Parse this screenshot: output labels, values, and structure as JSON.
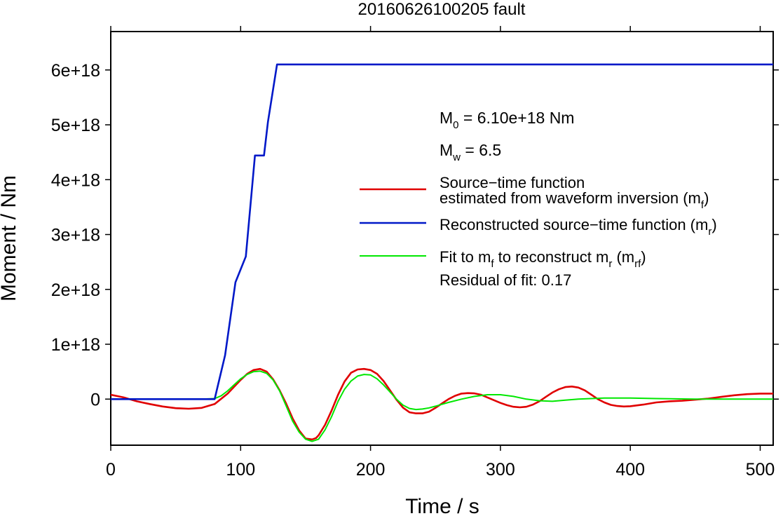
{
  "chart_data": {
    "type": "line",
    "title": "20160626100205 fault",
    "xlabel": "Time / s",
    "ylabel": "Moment / Nm",
    "xlim": [
      0,
      510
    ],
    "ylim": [
      -8.4e+17,
      6.7e+18
    ],
    "xticks": [
      0,
      100,
      200,
      300,
      400,
      500
    ],
    "xtick_labels": [
      "0",
      "100",
      "200",
      "300",
      "400",
      "500"
    ],
    "yticks": [
      0,
      1e+18,
      2e+18,
      3e+18,
      4e+18,
      5e+18,
      6e+18
    ],
    "ytick_labels": [
      "0",
      "1e+18",
      "2e+18",
      "3e+18",
      "4e+18",
      "5e+18",
      "6e+18"
    ],
    "grid": false,
    "legend_position": "right",
    "annotations": {
      "m0": {
        "main": "M",
        "sub": "0",
        "rest": " = 6.10e+18 Nm"
      },
      "mw": {
        "main": "M",
        "sub": "w",
        "rest": " = 6.5"
      },
      "residual": "Residual of fit: 0.17"
    },
    "series": [
      {
        "name": "Source−time function estimated from waveform inversion (mf)",
        "legend_lines": [
          {
            "text": "Source−time function"
          },
          {
            "text": "estimated from waveform inversion (m",
            "sub": "f",
            "tail": ")"
          }
        ],
        "color": "#e00000",
        "x": [
          0,
          10,
          20,
          30,
          40,
          50,
          60,
          70,
          80,
          90,
          100,
          105,
          110,
          115,
          120,
          125,
          130,
          135,
          140,
          145,
          150,
          155,
          158,
          160,
          165,
          170,
          175,
          180,
          185,
          190,
          195,
          200,
          205,
          210,
          215,
          220,
          225,
          230,
          235,
          240,
          245,
          250,
          255,
          260,
          265,
          270,
          275,
          280,
          285,
          290,
          295,
          300,
          305,
          310,
          315,
          320,
          325,
          330,
          335,
          340,
          345,
          350,
          355,
          360,
          365,
          370,
          375,
          380,
          385,
          390,
          395,
          400,
          410,
          420,
          430,
          440,
          450,
          460,
          470,
          480,
          490,
          500,
          510
        ],
        "y": [
          8e+16,
          3e+16,
          -4e+16,
          -9e+16,
          -1.35e+17,
          -1.65e+17,
          -1.75e+17,
          -1.6e+17,
          -9e+16,
          1e+17,
          3.5e+17,
          4.6e+17,
          5.3e+17,
          5.5e+17,
          5e+17,
          3.6e+17,
          1.6e+17,
          -8e+16,
          -3.5e+17,
          -5.7e+17,
          -7.2e+17,
          -7.35e+17,
          -7.1e+17,
          -6.6e+17,
          -4.7e+17,
          -2.1e+17,
          8e+16,
          3.2e+17,
          4.8e+17,
          5.4e+17,
          5.5e+17,
          5.3e+17,
          4.6e+17,
          3.3e+17,
          1.6e+17,
          -1e+16,
          -1.55e+17,
          -2.4e+17,
          -2.6e+17,
          -2.6e+17,
          -2.3e+17,
          -1.6e+17,
          -8e+16,
          0,
          6e+16,
          1e+17,
          1.1e+17,
          1.05e+17,
          8e+16,
          3e+16,
          -2e+16,
          -7e+16,
          -1.1e+17,
          -1.4e+17,
          -1.5e+17,
          -1.4e+17,
          -1e+17,
          -4e+16,
          4e+16,
          1.2e+17,
          1.8e+17,
          2.2e+17,
          2.3e+17,
          2.1e+17,
          1.6e+17,
          8e+16,
          0,
          -6e+16,
          -1.05e+17,
          -1.25e+17,
          -1.35e+17,
          -1.3e+17,
          -1e+17,
          -6e+16,
          -4e+16,
          -3e+16,
          -1e+16,
          1e+16,
          4e+16,
          7e+16,
          9e+16,
          1e+17,
          1e+17
        ]
      },
      {
        "name": "Reconstructed source−time function (mr)",
        "legend_lines": [
          {
            "text": "Reconstructed source−time function (m",
            "sub": "r",
            "tail": ")"
          }
        ],
        "color": "#0018c8",
        "x": [
          0,
          80,
          88,
          96,
          104,
          111,
          118,
          121,
          128,
          510
        ],
        "y": [
          0,
          0,
          8e+17,
          2.13e+18,
          2.6e+18,
          4.44e+18,
          4.44e+18,
          5.05e+18,
          6.1e+18,
          6.1e+18
        ]
      },
      {
        "name": "Fit to mf to reconstruct mr (mrf)",
        "legend_lines": [
          {
            "text": "Fit to m",
            "sub": "f",
            "tail": " to reconstruct m",
            "sub2": "r",
            "tail2": " (m",
            "sub3": "rf",
            "tail3": ")"
          }
        ],
        "color": "#00e800",
        "x": [
          0,
          70,
          80,
          85,
          90,
          95,
          100,
          105,
          110,
          115,
          120,
          125,
          130,
          135,
          140,
          145,
          150,
          155,
          160,
          165,
          170,
          175,
          180,
          185,
          190,
          195,
          200,
          205,
          210,
          215,
          220,
          225,
          230,
          235,
          240,
          245,
          250,
          260,
          270,
          280,
          290,
          300,
          310,
          320,
          330,
          340,
          350,
          360,
          370,
          380,
          400,
          420,
          450,
          480,
          510
        ],
        "y": [
          0,
          0,
          1e+16,
          6e+16,
          1.5e+17,
          2.6e+17,
          3.7e+17,
          4.5e+17,
          5e+17,
          5.1e+17,
          4.7e+17,
          3.5e+17,
          1.5e+17,
          -1.2e+17,
          -4e+17,
          -6e+17,
          -7.3e+17,
          -7.7e+17,
          -7.3e+17,
          -5.6e+17,
          -3.2e+17,
          -4e+16,
          1.8e+17,
          3.3e+17,
          4.2e+17,
          4.5e+17,
          4.4e+17,
          3.7e+17,
          2.6e+17,
          1.3e+17,
          0,
          -1.1e+17,
          -1.7e+17,
          -1.9e+17,
          -1.8e+17,
          -1.6e+17,
          -1.3e+17,
          -6e+16,
          0,
          5e+16,
          8e+16,
          8e+16,
          5e+16,
          0,
          -3e+16,
          -4e+16,
          -2e+16,
          0,
          1e+16,
          2e+16,
          2e+16,
          1e+16,
          0,
          0,
          0
        ]
      }
    ]
  }
}
